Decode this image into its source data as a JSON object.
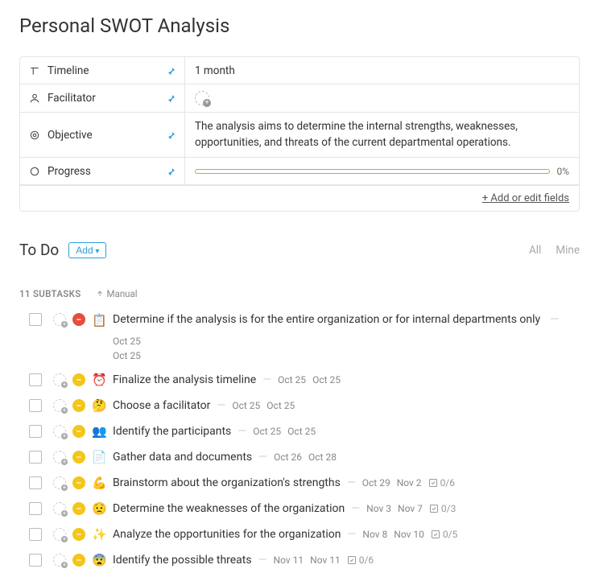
{
  "page_title": "Personal SWOT Analysis",
  "fields": {
    "timeline": {
      "label": "Timeline",
      "value": "1 month"
    },
    "facilitator": {
      "label": "Facilitator"
    },
    "objective": {
      "label": "Objective",
      "value": "The analysis aims to determine the internal strengths, weaknesses, opportunities, and threats of the current departmental operations."
    },
    "progress": {
      "label": "Progress",
      "percent": "0%",
      "bar_color": "#8bc34a"
    }
  },
  "fields_footer": "+ Add or edit fields",
  "section": {
    "title": "To Do",
    "add_label": "Add",
    "filter_all": "All",
    "filter_mine": "Mine"
  },
  "subtasks": {
    "count_label": "11 SUBTASKS",
    "sort_label": "Manual"
  },
  "tasks": [
    {
      "priority": "red",
      "emoji": "📋",
      "title": "Determine if the analysis is for the entire organization or for internal departments only",
      "date1": "Oct 25",
      "date2": "Oct 25",
      "wrap": true
    },
    {
      "priority": "yellow",
      "emoji": "⏰",
      "title": "Finalize the analysis timeline",
      "date1": "Oct 25",
      "date2": "Oct 25"
    },
    {
      "priority": "yellow",
      "emoji": "🤔",
      "title": "Choose a facilitator",
      "date1": "Oct 25",
      "date2": "Oct 25"
    },
    {
      "priority": "yellow",
      "emoji": "👥",
      "title": "Identify the participants",
      "date1": "Oct 25",
      "date2": "Oct 25"
    },
    {
      "priority": "yellow",
      "emoji": "📄",
      "title": "Gather data and documents",
      "date1": "Oct 26",
      "date2": "Oct 28"
    },
    {
      "priority": "yellow",
      "emoji": "💪",
      "title": "Brainstorm about the organization's strengths",
      "date1": "Oct 29",
      "date2": "Nov 2",
      "checklist": "0/6"
    },
    {
      "priority": "yellow",
      "emoji": "😟",
      "title": "Determine the weaknesses of the organization",
      "date1": "Nov 3",
      "date2": "Nov 7",
      "checklist": "0/3"
    },
    {
      "priority": "yellow",
      "emoji": "✨",
      "title": "Analyze the opportunities for the organization",
      "date1": "Nov 8",
      "date2": "Nov 10",
      "checklist": "0/5"
    },
    {
      "priority": "yellow",
      "emoji": "😨",
      "title": "Identify the possible threats",
      "date1": "Nov 11",
      "date2": "Nov 11",
      "checklist": "0/6"
    }
  ],
  "colors": {
    "accent": "#2d9cdb",
    "priority_high": "#e74c3c",
    "priority_med": "#f5c518"
  }
}
